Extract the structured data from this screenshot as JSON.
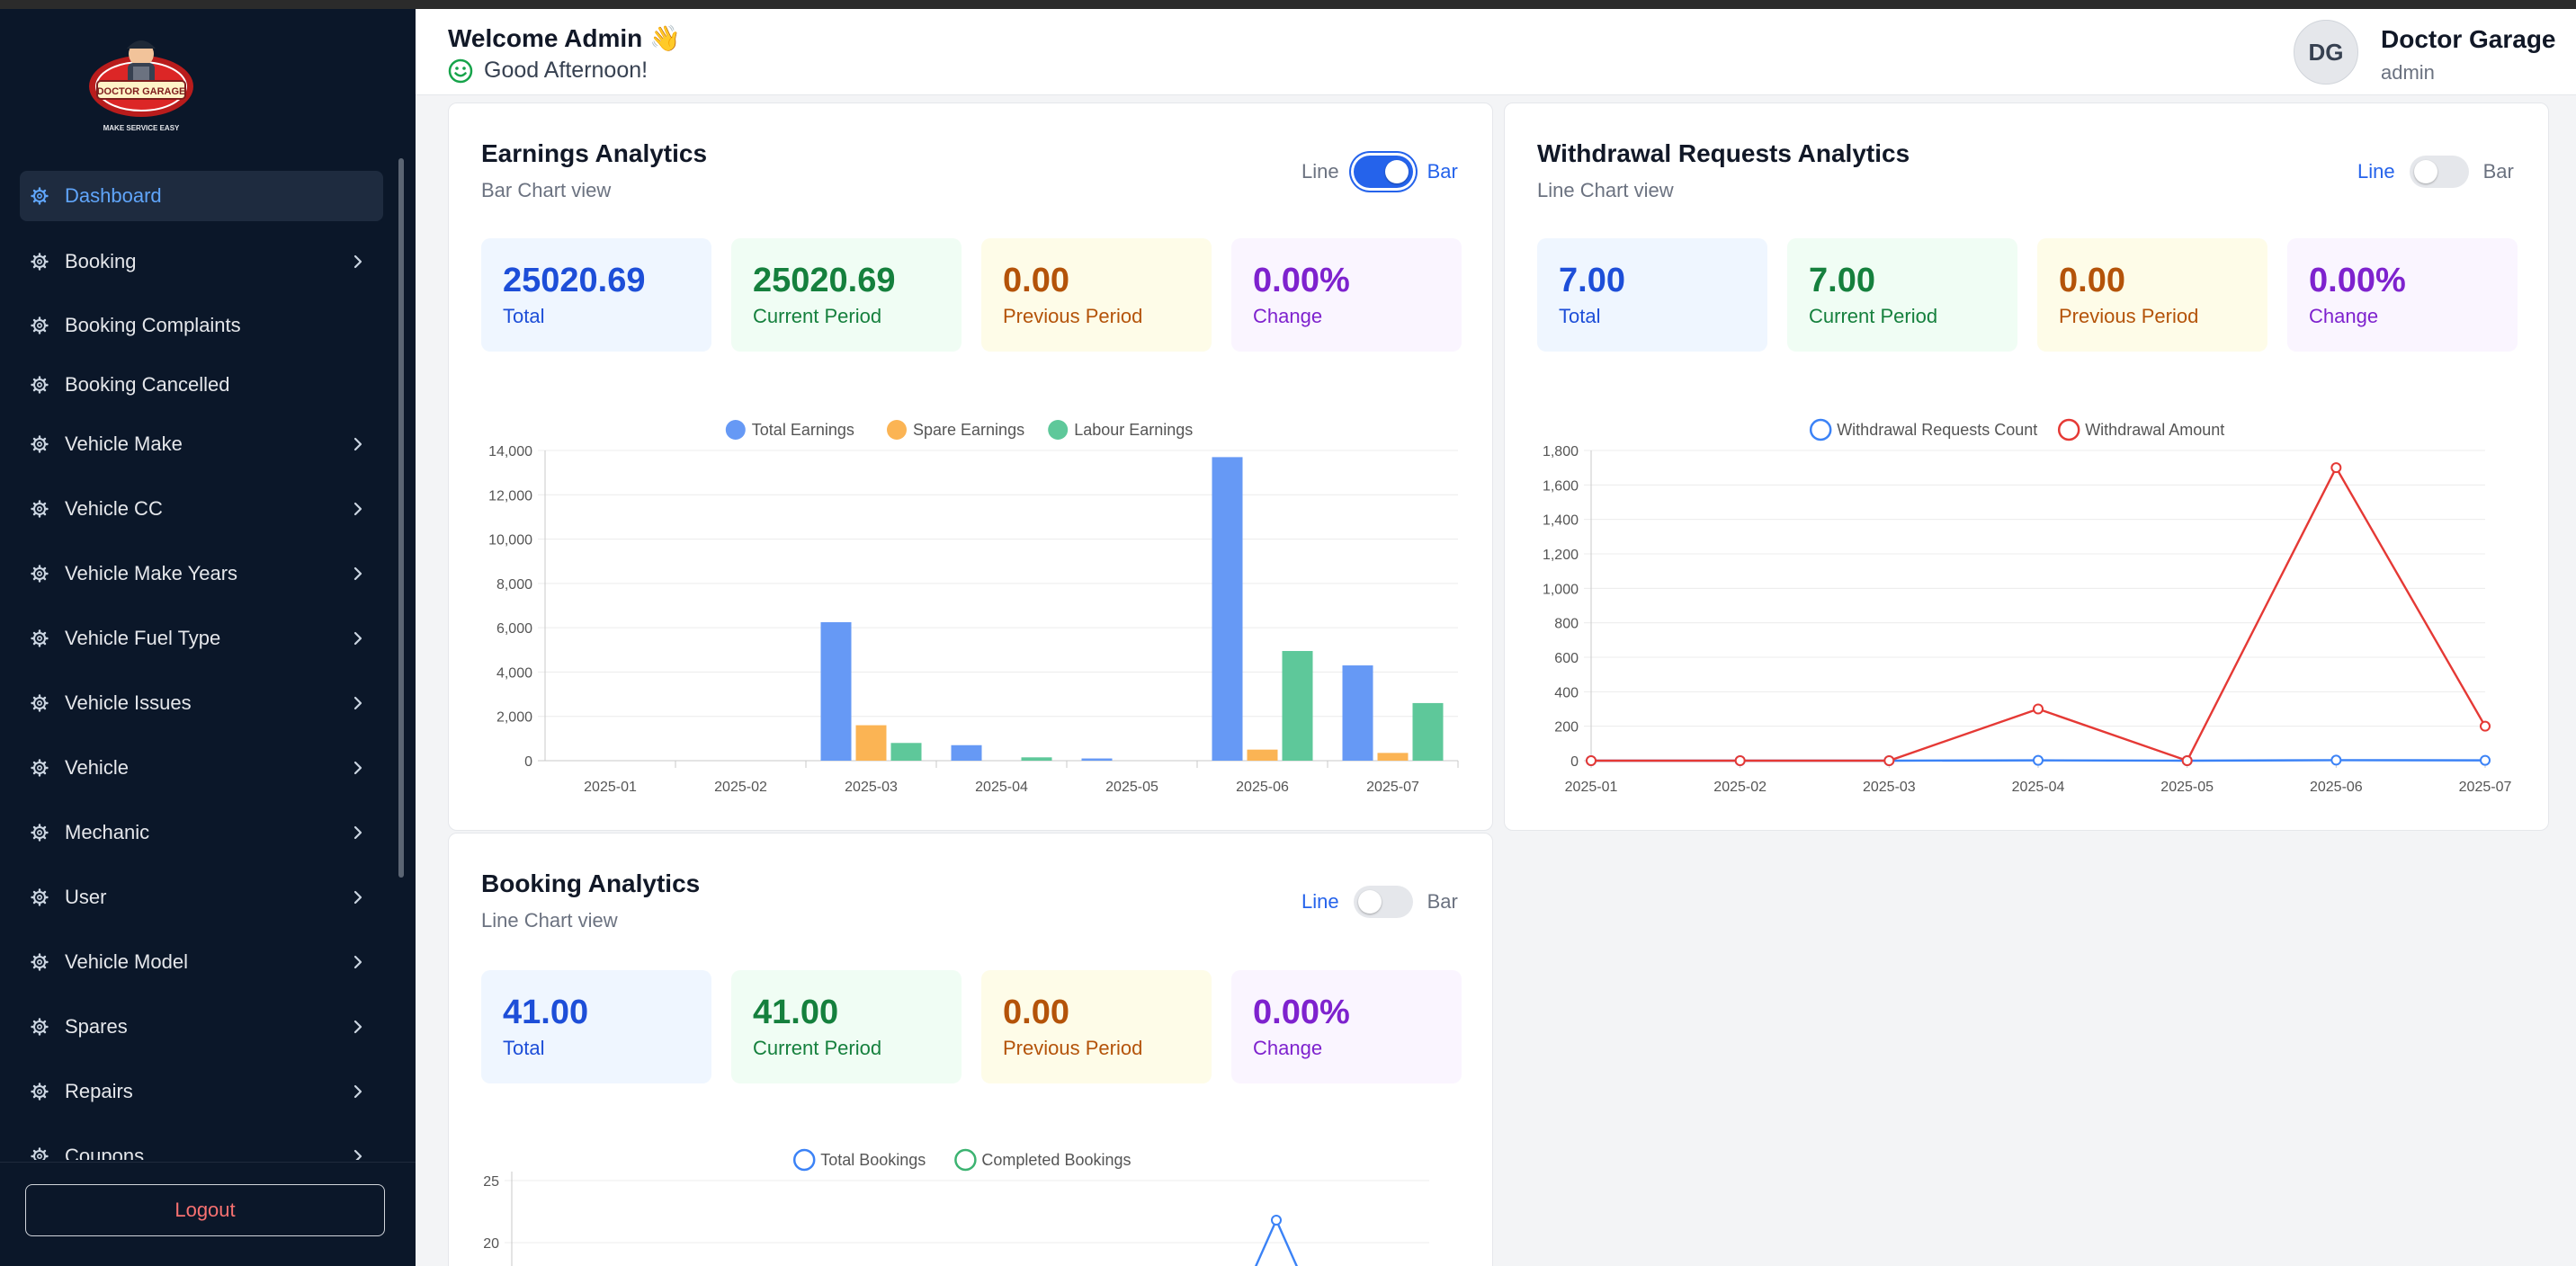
{
  "sidebar": {
    "items": [
      {
        "label": "Dashboard",
        "chevron": false,
        "active": true
      },
      {
        "label": "Booking",
        "chevron": true
      },
      {
        "label": "Booking Complaints",
        "chevron": false
      },
      {
        "label": "Booking Cancelled",
        "chevron": false
      },
      {
        "label": "Vehicle Make",
        "chevron": true
      },
      {
        "label": "Vehicle CC",
        "chevron": true
      },
      {
        "label": "Vehicle Make Years",
        "chevron": true
      },
      {
        "label": "Vehicle Fuel Type",
        "chevron": true
      },
      {
        "label": "Vehicle Issues",
        "chevron": true
      },
      {
        "label": "Vehicle",
        "chevron": true
      },
      {
        "label": "Mechanic",
        "chevron": true
      },
      {
        "label": "User",
        "chevron": true
      },
      {
        "label": "Vehicle Model",
        "chevron": true
      },
      {
        "label": "Spares",
        "chevron": true
      },
      {
        "label": "Repairs",
        "chevron": true
      },
      {
        "label": "Coupons",
        "chevron": true
      }
    ],
    "logout_label": "Logout",
    "logo": {
      "name": "DOCTOR GARAGE",
      "tagline": "MAKE SERVICE EASY"
    }
  },
  "header": {
    "welcome": "Welcome Admin 👋",
    "greeting": "Good Afternoon!",
    "avatar_initials": "DG",
    "user_name": "Doctor Garage",
    "user_role": "admin"
  },
  "toggle_labels": {
    "line": "Line",
    "bar": "Bar"
  },
  "earnings": {
    "title": "Earnings Analytics",
    "subtitle": "Bar Chart view",
    "mode": "bar",
    "stats": {
      "total": "25020.69",
      "total_label": "Total",
      "current": "25020.69",
      "current_label": "Current Period",
      "previous": "0.00",
      "previous_label": "Previous Period",
      "change": "0.00%",
      "change_label": "Change"
    }
  },
  "withdrawal": {
    "title": "Withdrawal Requests Analytics",
    "subtitle": "Line Chart view",
    "mode": "line",
    "stats": {
      "total": "7.00",
      "total_label": "Total",
      "current": "7.00",
      "current_label": "Current Period",
      "previous": "0.00",
      "previous_label": "Previous Period",
      "change": "0.00%",
      "change_label": "Change"
    }
  },
  "booking": {
    "title": "Booking Analytics",
    "subtitle": "Line Chart view",
    "mode": "line",
    "stats": {
      "total": "41.00",
      "total_label": "Total",
      "current": "41.00",
      "current_label": "Current Period",
      "previous": "0.00",
      "previous_label": "Previous Period",
      "change": "0.00%",
      "change_label": "Change"
    }
  },
  "chart_data": [
    {
      "type": "bar",
      "categories": [
        "2025-01",
        "2025-02",
        "2025-03",
        "2025-04",
        "2025-05",
        "2025-06",
        "2025-07"
      ],
      "series": [
        {
          "name": "Total Earnings",
          "color": "#6699f5",
          "values": [
            0,
            0,
            6250,
            700,
            100,
            13700,
            4300
          ]
        },
        {
          "name": "Spare Earnings",
          "color": "#fbb454",
          "values": [
            0,
            0,
            1600,
            0,
            0,
            500,
            350
          ]
        },
        {
          "name": "Labour Earnings",
          "color": "#5ec89a",
          "values": [
            0,
            0,
            800,
            150,
            0,
            4950,
            2600
          ]
        }
      ],
      "ylim": [
        0,
        14000
      ],
      "yticks": [
        "0",
        "2,000",
        "4,000",
        "6,000",
        "8,000",
        "10,000",
        "12,000",
        "14,000"
      ],
      "legend": "top",
      "grid": true
    },
    {
      "type": "line",
      "categories": [
        "2025-01",
        "2025-02",
        "2025-03",
        "2025-04",
        "2025-05",
        "2025-06",
        "2025-07"
      ],
      "series": [
        {
          "name": "Withdrawal Requests Count",
          "color": "#3b82f6",
          "values": [
            0,
            0,
            0,
            2,
            0,
            3,
            2
          ]
        },
        {
          "name": "Withdrawal Amount",
          "color": "#e53935",
          "values": [
            0,
            0,
            0,
            300,
            0,
            1700,
            200
          ]
        }
      ],
      "ylim": [
        0,
        1800
      ],
      "yticks": [
        "0",
        "200",
        "400",
        "600",
        "800",
        "1,000",
        "1,200",
        "1,400",
        "1,600",
        "1,800"
      ],
      "legend": "top",
      "grid": true
    },
    {
      "type": "line",
      "series": [
        {
          "name": "Total Bookings",
          "color": "#3b82f6"
        },
        {
          "name": "Completed Bookings",
          "color": "#3cb371"
        }
      ],
      "yticks_visible": [
        "25",
        "20"
      ],
      "legend": "top",
      "grid": true
    }
  ]
}
